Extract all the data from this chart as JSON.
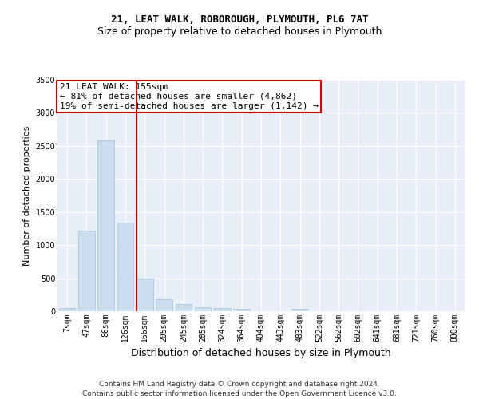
{
  "title": "21, LEAT WALK, ROBOROUGH, PLYMOUTH, PL6 7AT",
  "subtitle": "Size of property relative to detached houses in Plymouth",
  "xlabel": "Distribution of detached houses by size in Plymouth",
  "ylabel": "Number of detached properties",
  "bar_color": "#ccddf0",
  "bar_edge_color": "#a0c0e0",
  "background_color": "#e8eef8",
  "grid_color": "#ffffff",
  "categories": [
    "7sqm",
    "47sqm",
    "86sqm",
    "126sqm",
    "166sqm",
    "205sqm",
    "245sqm",
    "285sqm",
    "324sqm",
    "364sqm",
    "404sqm",
    "443sqm",
    "483sqm",
    "522sqm",
    "562sqm",
    "602sqm",
    "641sqm",
    "681sqm",
    "721sqm",
    "760sqm",
    "800sqm"
  ],
  "values": [
    50,
    1220,
    2580,
    1340,
    490,
    185,
    105,
    55,
    45,
    35,
    0,
    0,
    40,
    0,
    0,
    0,
    0,
    0,
    0,
    0,
    0
  ],
  "ylim": [
    0,
    3500
  ],
  "yticks": [
    0,
    500,
    1000,
    1500,
    2000,
    2500,
    3000,
    3500
  ],
  "vline_color": "#cc0000",
  "annotation_title": "21 LEAT WALK: 155sqm",
  "annotation_line1": "← 81% of detached houses are smaller (4,862)",
  "annotation_line2": "19% of semi-detached houses are larger (1,142) →",
  "footer_line1": "Contains HM Land Registry data © Crown copyright and database right 2024.",
  "footer_line2": "Contains public sector information licensed under the Open Government Licence v3.0.",
  "title_fontsize": 9,
  "subtitle_fontsize": 9,
  "xlabel_fontsize": 9,
  "ylabel_fontsize": 8,
  "tick_fontsize": 7,
  "annotation_fontsize": 8,
  "footer_fontsize": 6.5
}
